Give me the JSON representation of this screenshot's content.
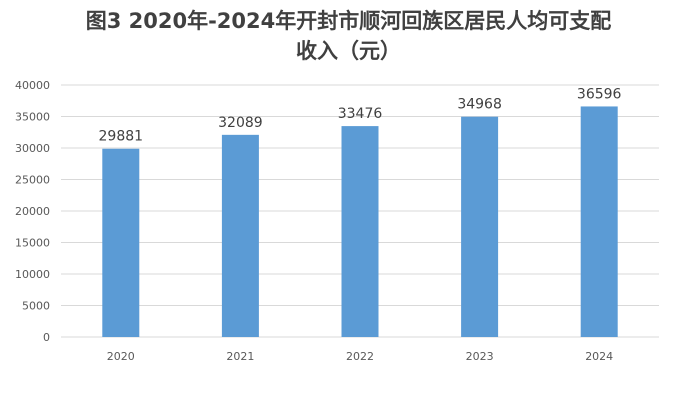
{
  "chart_data": {
    "type": "bar",
    "title_line1": "图3 2020年-2024年开封市顺河回族区居民人均可支配",
    "title_line2": "收入（元）",
    "categories": [
      "2020",
      "2021",
      "2022",
      "2023",
      "2024"
    ],
    "values": [
      29881,
      32089,
      33476,
      34968,
      36596
    ],
    "data_labels": [
      "29881",
      "32089",
      "33476",
      "34968",
      "36596"
    ],
    "y_ticks": [
      "0",
      "5000",
      "10000",
      "15000",
      "20000",
      "25000",
      "30000",
      "35000",
      "40000"
    ],
    "ylim": [
      0,
      40000
    ],
    "y_step": 5000,
    "xlabel": "",
    "ylabel": "",
    "grid": true,
    "legend": "none",
    "bar_color": "#5B9BD5",
    "grid_color": "#D9D9D9"
  }
}
